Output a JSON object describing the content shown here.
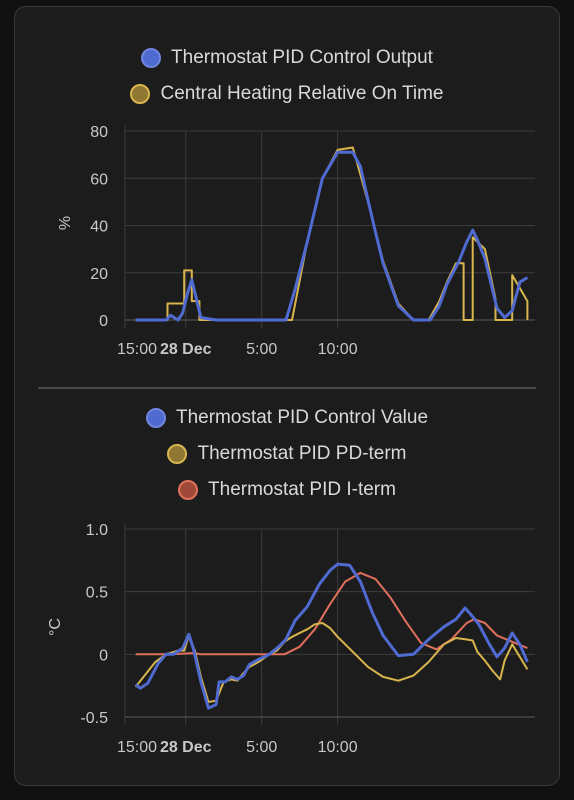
{
  "colors": {
    "blue": "#4f6ad1",
    "yellow": "#d9b54e",
    "red": "#e0705c"
  },
  "chart_data": [
    {
      "type": "line",
      "series": [
        {
          "name": "Thermostat PID Control Output",
          "color": "#4f6ad1",
          "x": [
            -3.3,
            -2.0,
            -1.3,
            -1.0,
            -0.5,
            -0.2,
            0.1,
            0.4,
            1.0,
            2.0,
            3.5,
            4.5,
            5.5,
            6.6,
            7.2,
            8.0,
            9.0,
            10.0,
            11.0,
            11.5,
            12.1,
            12.5,
            13.0,
            14.0,
            15.0,
            16.1,
            16.7,
            17.2,
            17.6,
            18.0,
            18.5,
            18.9,
            19.2,
            19.7,
            20.5,
            21.0,
            21.5,
            22.0,
            22.5
          ],
          "values": [
            0,
            0,
            0,
            2,
            0,
            3,
            11,
            17,
            1,
            0,
            0,
            0,
            0,
            0,
            13,
            33,
            60,
            71,
            71,
            65,
            48,
            37,
            24,
            6,
            0,
            0,
            6,
            15,
            20,
            25,
            33,
            38,
            34,
            26,
            5,
            1,
            4,
            16,
            18
          ]
        },
        {
          "name": "Central Heating Relative On Time",
          "color": "#d9b54e",
          "x": [
            -3.3,
            -1.2,
            -1.2,
            -0.1,
            -0.1,
            0.4,
            0.4,
            0.9,
            0.9,
            7.0,
            8.0,
            9.0,
            10.0,
            11.0,
            12.0,
            13.0,
            14.0,
            15.0,
            16.0,
            16.7,
            17.2,
            17.8,
            18.3,
            18.3,
            18.9,
            18.9,
            19.7,
            20.4,
            20.4,
            21.5,
            21.5,
            22.5,
            22.5
          ],
          "values": [
            0,
            0,
            7,
            7,
            21,
            21,
            8,
            8,
            0,
            0,
            33,
            60,
            72,
            73,
            50,
            25,
            7,
            0,
            0,
            8,
            16,
            24,
            24,
            0,
            0,
            35,
            30,
            9,
            0,
            0,
            19,
            8,
            0
          ]
        }
      ],
      "xticks": [
        "15:00",
        "28 Dec",
        "5:00",
        "10:00"
      ],
      "xrange": [
        -4,
        23
      ],
      "ylabel": "%",
      "yticks": [
        0,
        20,
        40,
        60,
        80
      ],
      "ylim": [
        0,
        80
      ],
      "grid": true,
      "legend": "top"
    },
    {
      "type": "line",
      "series": [
        {
          "name": "Thermostat PID Control Value",
          "color": "#4f6ad1",
          "x": [
            -3.3,
            -3.0,
            -2.5,
            -1.8,
            -1.3,
            -0.8,
            -0.2,
            0.2,
            0.5,
            1.0,
            1.5,
            2.0,
            2.2,
            2.6,
            3.0,
            3.4,
            3.8,
            4.2,
            4.8,
            5.5,
            6.2,
            6.6,
            7.2,
            8.0,
            8.8,
            9.5,
            10.0,
            10.8,
            11.5,
            12.3,
            13.0,
            14.0,
            15.0,
            16.0,
            17.0,
            17.8,
            18.4,
            18.9,
            19.3,
            20.0,
            20.5,
            21.0,
            21.5,
            22.0,
            22.5
          ],
          "values": [
            -0.24,
            -0.27,
            -0.23,
            -0.07,
            0.0,
            0.0,
            0.05,
            0.16,
            0.05,
            -0.22,
            -0.43,
            -0.4,
            -0.22,
            -0.22,
            -0.18,
            -0.2,
            -0.17,
            -0.08,
            -0.04,
            0.0,
            0.07,
            0.12,
            0.27,
            0.38,
            0.56,
            0.67,
            0.72,
            0.71,
            0.58,
            0.33,
            0.15,
            -0.01,
            0.0,
            0.12,
            0.22,
            0.28,
            0.37,
            0.3,
            0.24,
            0.08,
            -0.02,
            0.05,
            0.17,
            0.08,
            -0.06
          ]
        },
        {
          "name": "Thermostat PID PD-term",
          "color": "#d9b54e",
          "x": [
            -3.3,
            -2.0,
            -1.3,
            -0.5,
            -0.1,
            0.2,
            0.6,
            1.0,
            1.5,
            2.0,
            2.5,
            3.0,
            3.4,
            3.8,
            4.2,
            4.8,
            5.5,
            6.0,
            6.5,
            7.0,
            7.5,
            8.0,
            8.5,
            9.0,
            9.5,
            10.0,
            11.0,
            12.0,
            13.0,
            14.0,
            15.0,
            16.0,
            17.0,
            17.8,
            18.4,
            18.9,
            19.2,
            19.7,
            20.2,
            20.7,
            21.0,
            21.5,
            22.0,
            22.5
          ],
          "values": [
            -0.26,
            -0.06,
            0.0,
            0.03,
            0.03,
            0.15,
            0.03,
            -0.18,
            -0.38,
            -0.37,
            -0.22,
            -0.2,
            -0.21,
            -0.15,
            -0.1,
            -0.06,
            0.0,
            0.03,
            0.1,
            0.14,
            0.17,
            0.2,
            0.24,
            0.25,
            0.21,
            0.14,
            0.02,
            -0.1,
            -0.18,
            -0.21,
            -0.17,
            -0.06,
            0.08,
            0.13,
            0.12,
            0.11,
            0.02,
            -0.05,
            -0.13,
            -0.2,
            -0.05,
            0.08,
            -0.02,
            -0.12
          ]
        },
        {
          "name": "Thermostat PID I-term",
          "color": "#e0705c",
          "x": [
            -3.3,
            -1.0,
            0.5,
            1.0,
            6.5,
            7.5,
            8.5,
            9.5,
            10.5,
            11.5,
            12.5,
            13.5,
            14.5,
            15.5,
            16.5,
            17.5,
            18.5,
            19.0,
            19.7,
            20.5,
            21.5,
            22.5
          ],
          "values": [
            0.0,
            0.0,
            0.01,
            0.0,
            0.0,
            0.06,
            0.2,
            0.4,
            0.58,
            0.65,
            0.6,
            0.45,
            0.26,
            0.09,
            0.04,
            0.12,
            0.25,
            0.28,
            0.25,
            0.15,
            0.1,
            0.05
          ]
        }
      ],
      "xticks": [
        "15:00",
        "28 Dec",
        "5:00",
        "10:00"
      ],
      "xrange": [
        -4,
        23
      ],
      "ylabel": "°C",
      "yticks": [
        "1.0",
        "0.5",
        "0",
        "-0.5"
      ],
      "ylim": [
        -0.5,
        1.0
      ],
      "grid": true,
      "legend": "top"
    }
  ]
}
